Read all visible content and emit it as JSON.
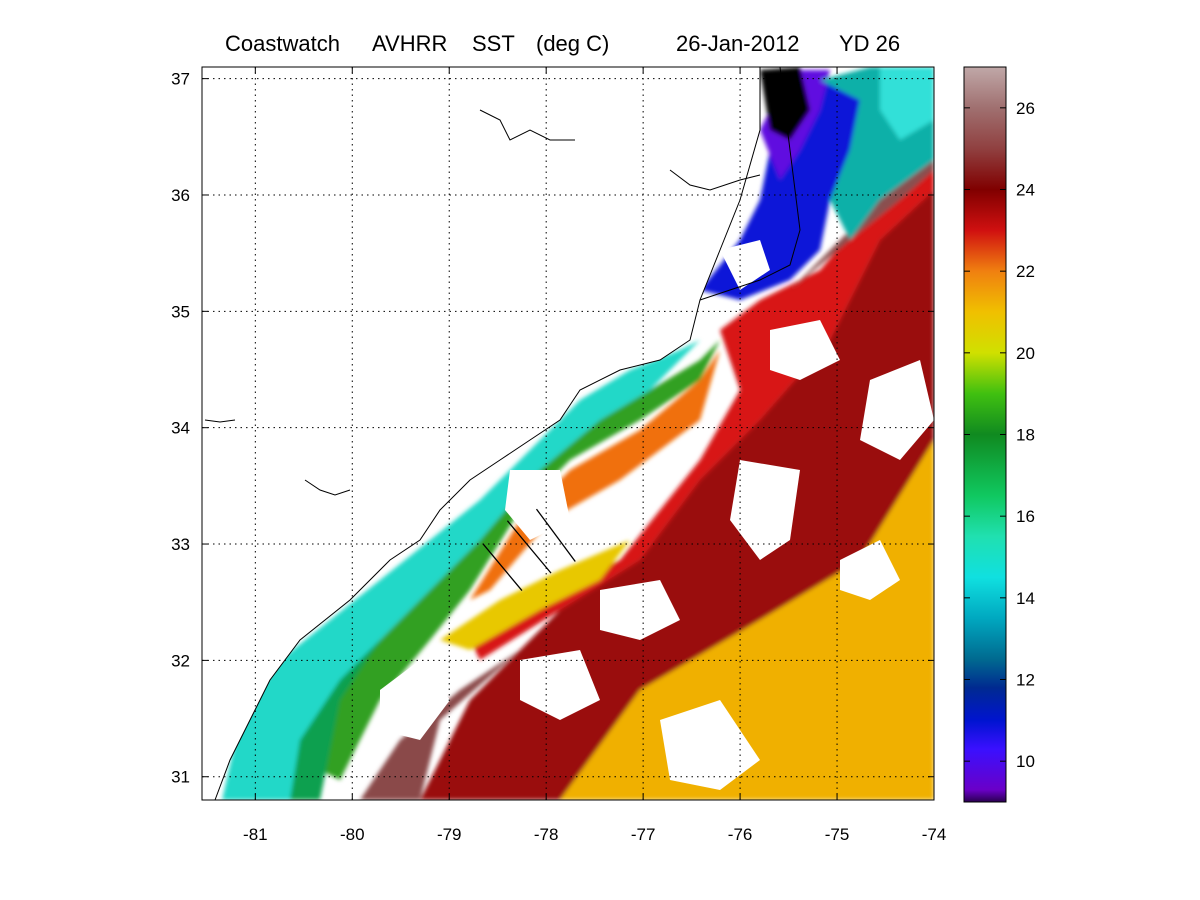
{
  "title": {
    "source": "Coastwatch",
    "sensor": "AVHRR",
    "variable": "SST",
    "unit": "(deg C)",
    "date": "26-Jan-2012",
    "yearday": "YD 26"
  },
  "map": {
    "lon_range": [
      -81.55,
      -74.0
    ],
    "lat_range": [
      30.8,
      37.1
    ],
    "lon_ticks": [
      "-81",
      "-80",
      "-79",
      "-78",
      "-77",
      "-76",
      "-75",
      "-74"
    ],
    "lat_ticks": [
      "37",
      "36",
      "35",
      "34",
      "33",
      "32",
      "31"
    ],
    "grid": "dotted",
    "land_color": "#ffffff",
    "coastline_color": "#000000"
  },
  "colorbar": {
    "range": [
      9,
      27
    ],
    "ticks": [
      "26",
      "24",
      "22",
      "20",
      "18",
      "16",
      "14",
      "12",
      "10"
    ],
    "colormap": "jet-like with brown top",
    "stops": [
      {
        "v": 9.0,
        "c": "#2a0050"
      },
      {
        "v": 9.3,
        "c": "#6a00c8"
      },
      {
        "v": 10.3,
        "c": "#3a10ff"
      },
      {
        "v": 11.0,
        "c": "#0014d0"
      },
      {
        "v": 11.8,
        "c": "#002a90"
      },
      {
        "v": 12.5,
        "c": "#006a90"
      },
      {
        "v": 13.5,
        "c": "#00a8c0"
      },
      {
        "v": 14.5,
        "c": "#10e0e0"
      },
      {
        "v": 15.5,
        "c": "#20e0b0"
      },
      {
        "v": 16.5,
        "c": "#10c860"
      },
      {
        "v": 18.0,
        "c": "#108a20"
      },
      {
        "v": 19.0,
        "c": "#40c010"
      },
      {
        "v": 20.0,
        "c": "#d0e000"
      },
      {
        "v": 21.0,
        "c": "#f0c000"
      },
      {
        "v": 22.0,
        "c": "#f08010"
      },
      {
        "v": 23.0,
        "c": "#d01010"
      },
      {
        "v": 24.0,
        "c": "#800000"
      },
      {
        "v": 25.0,
        "c": "#904040"
      },
      {
        "v": 26.0,
        "c": "#a07070"
      },
      {
        "v": 27.0,
        "c": "#c0a8a8"
      }
    ]
  },
  "transects": [
    {
      "name": "transect-a",
      "from": [
        -78.65,
        33.0
      ],
      "to": [
        -78.25,
        32.6
      ]
    },
    {
      "name": "transect-b",
      "from": [
        -78.4,
        33.2
      ],
      "to": [
        -77.95,
        32.75
      ]
    },
    {
      "name": "transect-c",
      "from": [
        -78.1,
        33.3
      ],
      "to": [
        -77.7,
        32.85
      ]
    }
  ]
}
